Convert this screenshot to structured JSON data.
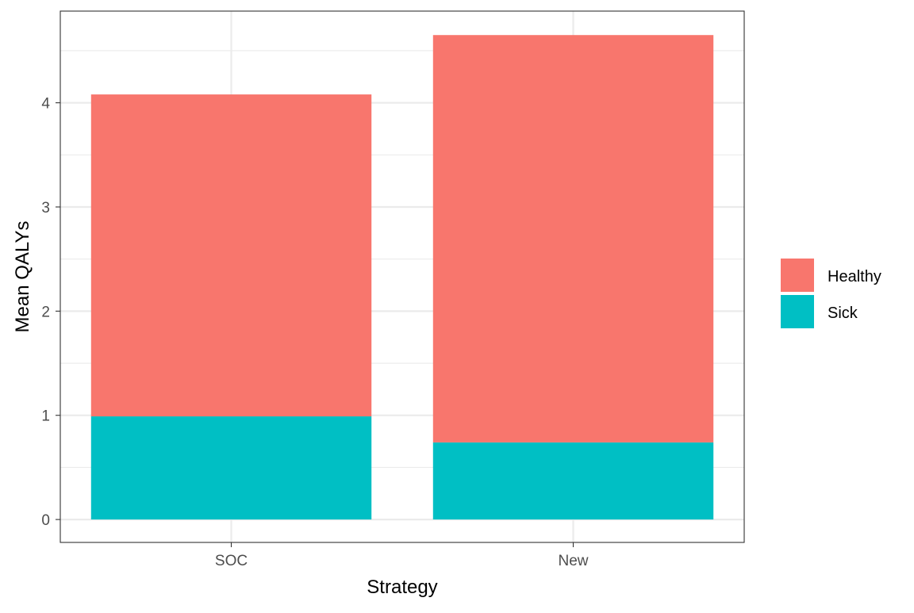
{
  "chart_data": {
    "type": "bar",
    "stacked": true,
    "categories": [
      "SOC",
      "New"
    ],
    "series": [
      {
        "name": "Healthy",
        "values": [
          3.09,
          3.91
        ],
        "color": "#F8766D"
      },
      {
        "name": "Sick",
        "values": [
          0.99,
          0.74
        ],
        "color": "#00BFC4"
      }
    ],
    "xlabel": "Strategy",
    "ylabel": "Mean QALYs",
    "ylim": [
      -0.22,
      4.88
    ],
    "yticks": [
      0,
      1,
      2,
      3,
      4
    ],
    "grid": true,
    "legend": {
      "position": "right",
      "entries": [
        "Healthy",
        "Sick"
      ]
    }
  }
}
